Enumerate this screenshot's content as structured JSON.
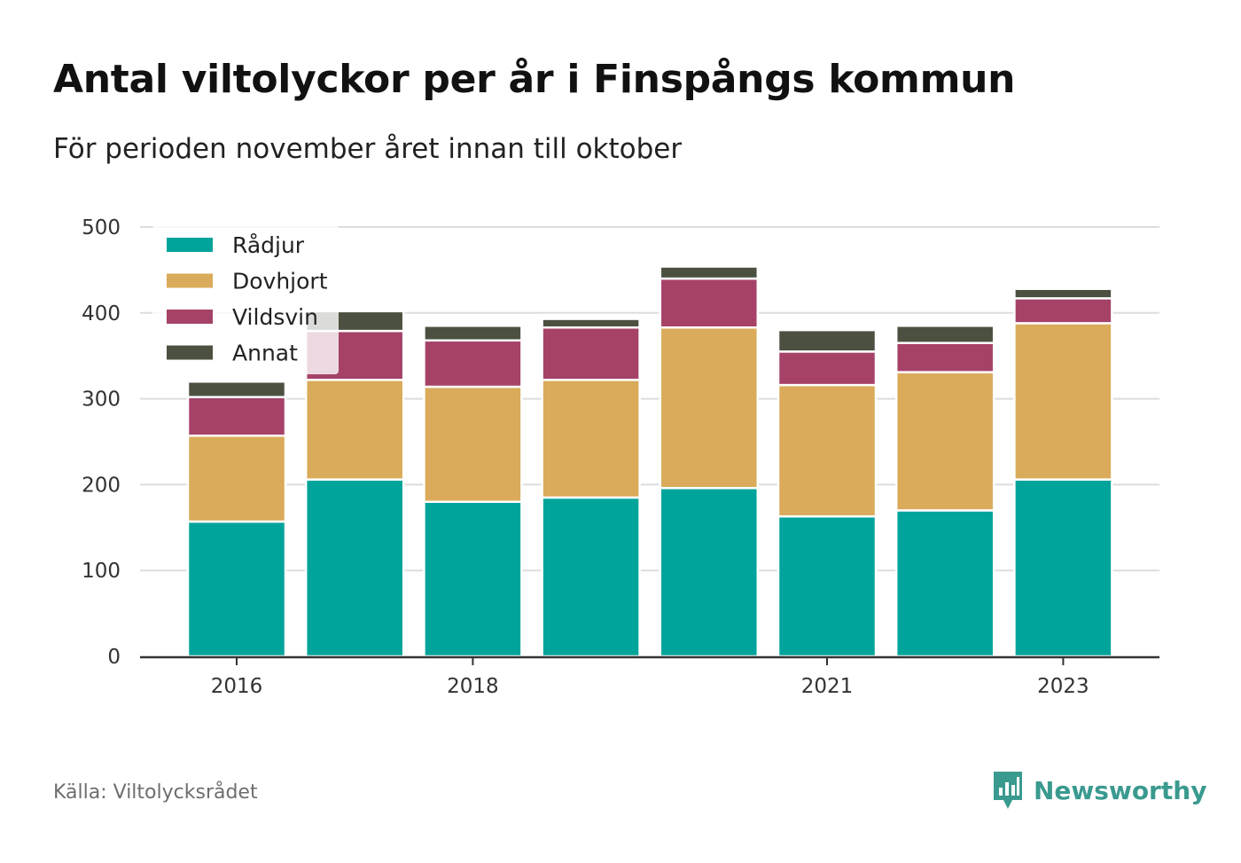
{
  "header": {
    "title": "Antal viltolyckor per år i Finspångs kommun",
    "subtitle": "För perioden november året innan till oktober"
  },
  "footer": {
    "source": "Källa: Viltolycksrådet",
    "brand": "Newsworthy",
    "brand_color": "#3a9a8f"
  },
  "chart_data": {
    "type": "bar",
    "stacked": true,
    "categories": [
      "2016",
      "2017",
      "2018",
      "2019",
      "2020",
      "2021",
      "2022",
      "2023"
    ],
    "x_tick_labels": [
      "2016",
      "",
      "2018",
      "",
      "",
      "2021",
      "",
      "2023"
    ],
    "series": [
      {
        "name": "Rådjur",
        "color": "#00a49a",
        "values": [
          157,
          206,
          180,
          185,
          196,
          163,
          170,
          206
        ]
      },
      {
        "name": "Dovhjort",
        "color": "#d9ab5a",
        "values": [
          100,
          116,
          134,
          137,
          187,
          153,
          161,
          182
        ]
      },
      {
        "name": "Vildsvin",
        "color": "#a64268",
        "values": [
          45,
          57,
          54,
          61,
          57,
          39,
          34,
          29
        ]
      },
      {
        "name": "Annat",
        "color": "#4c5040",
        "values": [
          18,
          23,
          17,
          10,
          14,
          25,
          20,
          11
        ]
      }
    ],
    "y_ticks": [
      0,
      100,
      200,
      300,
      400,
      500
    ],
    "ylim": [
      0,
      500
    ],
    "xlabel": "",
    "ylabel": "",
    "grid": true,
    "legend_position": "top-left"
  }
}
